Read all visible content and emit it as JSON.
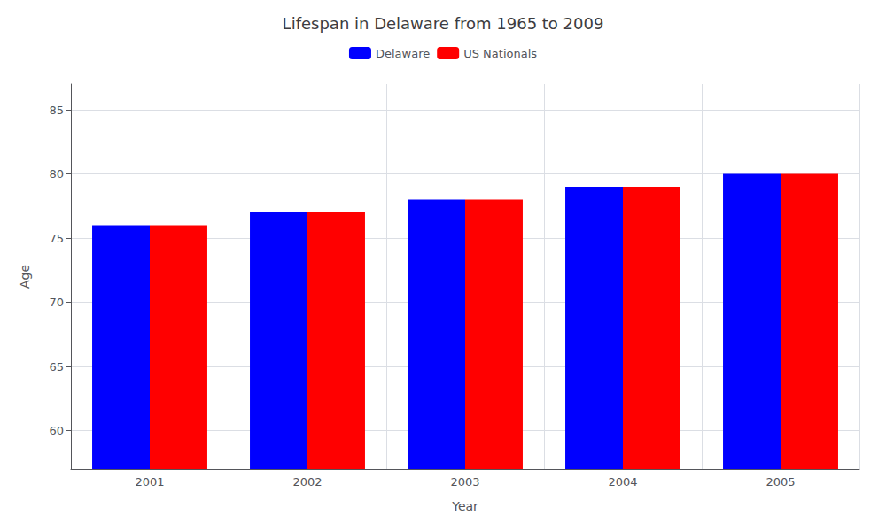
{
  "chart_data": {
    "type": "bar",
    "title": "Lifespan in Delaware from 1965 to 2009",
    "x_label": "Year",
    "y_label": "Age",
    "categories": [
      "2001",
      "2002",
      "2003",
      "2004",
      "2005"
    ],
    "series": [
      {
        "name": "Delaware",
        "color": "#0000ff",
        "values": [
          76,
          77,
          78,
          79,
          80
        ]
      },
      {
        "name": "US Nationals",
        "color": "#ff0000",
        "values": [
          76,
          77,
          78,
          79,
          80
        ]
      }
    ],
    "ylim": [
      57,
      87
    ],
    "yticks": [
      60,
      65,
      70,
      75,
      80,
      85
    ],
    "grid": true,
    "legend": "top"
  }
}
